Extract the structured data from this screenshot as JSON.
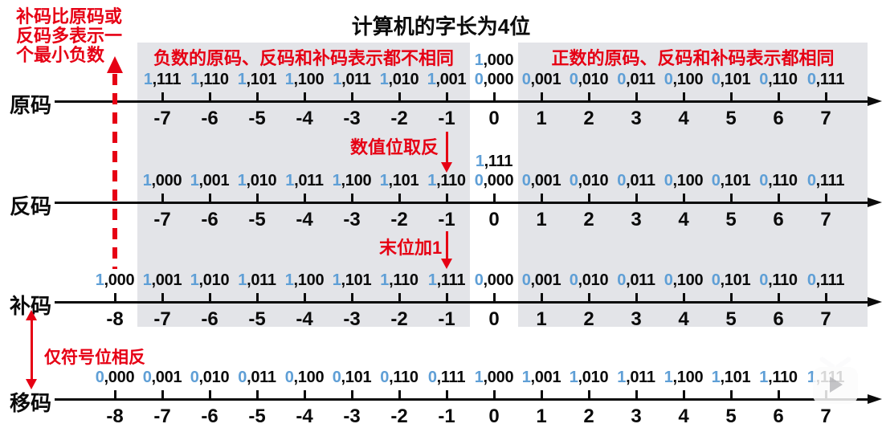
{
  "title": "计算机的字长为4位",
  "top_note": "补码比原码或\n反码多表示一\n个最小负数",
  "region_headers": {
    "negative": "负数的原码、反码和补码表示都不相同",
    "positive": "正数的原码、反码和补码表示都相同"
  },
  "annotations": {
    "invert_bits": "数值位取反",
    "add_one": "末位加1",
    "sign_flip": "仅符号位相反"
  },
  "colors": {
    "red": "#e60014",
    "sign_blue": "#5f9fd6",
    "region_gray": "#e3e4e8",
    "ink": "#0b0b0b"
  },
  "watermark": {
    "icon": "tv-play-icon"
  },
  "axis": {
    "min": -8,
    "max": 7
  },
  "rows": [
    {
      "key": "sign-magnitude",
      "label": "原码",
      "extra": {
        "value": 0,
        "code": "1,000"
      },
      "entries": [
        {
          "value": -7,
          "code": "1,111"
        },
        {
          "value": -6,
          "code": "1,110"
        },
        {
          "value": -5,
          "code": "1,101"
        },
        {
          "value": -4,
          "code": "1,100"
        },
        {
          "value": -3,
          "code": "1,011"
        },
        {
          "value": -2,
          "code": "1,010"
        },
        {
          "value": -1,
          "code": "1,001"
        },
        {
          "value": 0,
          "code": "0,000"
        },
        {
          "value": 1,
          "code": "0,001"
        },
        {
          "value": 2,
          "code": "0,010"
        },
        {
          "value": 3,
          "code": "0,011"
        },
        {
          "value": 4,
          "code": "0,100"
        },
        {
          "value": 5,
          "code": "0,101"
        },
        {
          "value": 6,
          "code": "0,110"
        },
        {
          "value": 7,
          "code": "0,111"
        }
      ]
    },
    {
      "key": "ones-complement",
      "label": "反码",
      "extra": {
        "value": 0,
        "code": "1,111"
      },
      "entries": [
        {
          "value": -7,
          "code": "1,000"
        },
        {
          "value": -6,
          "code": "1,001"
        },
        {
          "value": -5,
          "code": "1,010"
        },
        {
          "value": -4,
          "code": "1,011"
        },
        {
          "value": -3,
          "code": "1,100"
        },
        {
          "value": -2,
          "code": "1,101"
        },
        {
          "value": -1,
          "code": "1,110"
        },
        {
          "value": 0,
          "code": "0,000"
        },
        {
          "value": 1,
          "code": "0,001"
        },
        {
          "value": 2,
          "code": "0,010"
        },
        {
          "value": 3,
          "code": "0,011"
        },
        {
          "value": 4,
          "code": "0,100"
        },
        {
          "value": 5,
          "code": "0,101"
        },
        {
          "value": 6,
          "code": "0,110"
        },
        {
          "value": 7,
          "code": "0,111"
        }
      ]
    },
    {
      "key": "twos-complement",
      "label": "补码",
      "extra": null,
      "entries": [
        {
          "value": -8,
          "code": "1,000"
        },
        {
          "value": -7,
          "code": "1,001"
        },
        {
          "value": -6,
          "code": "1,010"
        },
        {
          "value": -5,
          "code": "1,011"
        },
        {
          "value": -4,
          "code": "1,100"
        },
        {
          "value": -3,
          "code": "1,101"
        },
        {
          "value": -2,
          "code": "1,110"
        },
        {
          "value": -1,
          "code": "1,111"
        },
        {
          "value": 0,
          "code": "0,000"
        },
        {
          "value": 1,
          "code": "0,001"
        },
        {
          "value": 2,
          "code": "0,010"
        },
        {
          "value": 3,
          "code": "0,011"
        },
        {
          "value": 4,
          "code": "0,100"
        },
        {
          "value": 5,
          "code": "0,101"
        },
        {
          "value": 6,
          "code": "0,110"
        },
        {
          "value": 7,
          "code": "0,111"
        }
      ]
    },
    {
      "key": "offset-code",
      "label": "移码",
      "extra": null,
      "entries": [
        {
          "value": -8,
          "code": "0,000"
        },
        {
          "value": -7,
          "code": "0,001"
        },
        {
          "value": -6,
          "code": "0,010"
        },
        {
          "value": -5,
          "code": "0,011"
        },
        {
          "value": -4,
          "code": "0,100"
        },
        {
          "value": -3,
          "code": "0,101"
        },
        {
          "value": -2,
          "code": "0,110"
        },
        {
          "value": -1,
          "code": "0,111"
        },
        {
          "value": 0,
          "code": "1,000"
        },
        {
          "value": 1,
          "code": "1,001"
        },
        {
          "value": 2,
          "code": "1,010"
        },
        {
          "value": 3,
          "code": "1,011"
        },
        {
          "value": 4,
          "code": "1,100"
        },
        {
          "value": 5,
          "code": "1,101"
        },
        {
          "value": 6,
          "code": "1,110"
        },
        {
          "value": 7,
          "code": "1,111"
        }
      ]
    }
  ]
}
